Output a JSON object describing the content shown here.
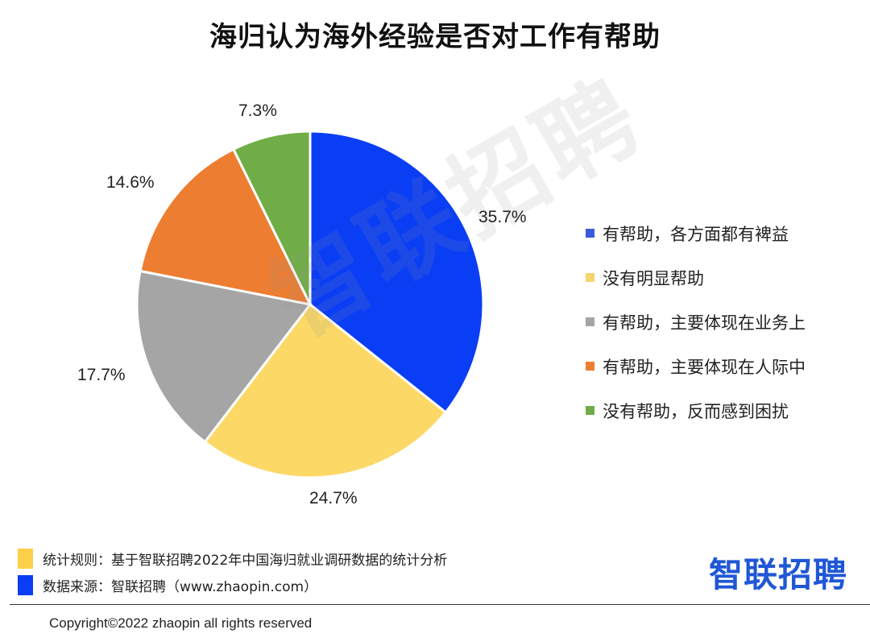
{
  "title": "海归认为海外经验是否对工作有帮助",
  "watermark": "智联招聘",
  "chart_data": {
    "type": "pie",
    "title": "海归认为海外经验是否对工作有帮助",
    "start_angle_deg": 0,
    "direction": "clockwise",
    "legend_position": "right",
    "slices": [
      {
        "label": "有帮助，各方面都有裨益",
        "value": 35.7,
        "display": "35.7%",
        "color": "#0a3ef5"
      },
      {
        "label": "没有明显帮助",
        "value": 24.7,
        "display": "24.7%",
        "color": "#fcd867"
      },
      {
        "label": "有帮助，主要体现在业务上",
        "value": 17.7,
        "display": "17.7%",
        "color": "#a5a5a5"
      },
      {
        "label": "有帮助，主要体现在人际中",
        "value": 14.6,
        "display": "14.6%",
        "color": "#ed7d31"
      },
      {
        "label": "没有帮助，反而感到困扰",
        "value": 7.3,
        "display": "7.3%",
        "color": "#70ad47"
      }
    ]
  },
  "labels": {
    "s0": "35.7%",
    "s1": "24.7%",
    "s2": "17.7%",
    "s3": "14.6%",
    "s4": "7.3%"
  },
  "legend": [
    {
      "label": "有帮助，各方面都有裨益",
      "color": "#3a5bd9"
    },
    {
      "label": "没有明显帮助",
      "color": "#f5d56e"
    },
    {
      "label": "有帮助，主要体现在业务上",
      "color": "#a5a5a5"
    },
    {
      "label": "有帮助，主要体现在人际中",
      "color": "#ed7d31"
    },
    {
      "label": "没有帮助，反而感到困扰",
      "color": "#70ad47"
    }
  ],
  "footer": {
    "rule_label": "统计规则：基于智联招聘2022年中国海归就业调研数据的统计分析",
    "rule_color": "#fdd04a",
    "source_label": "数据来源：智联招聘（www.zhaopin.com）",
    "source_color": "#0a3ef5",
    "brand": "智联招聘",
    "copyright": "Copyright©2022 zhaopin all rights reserved"
  }
}
